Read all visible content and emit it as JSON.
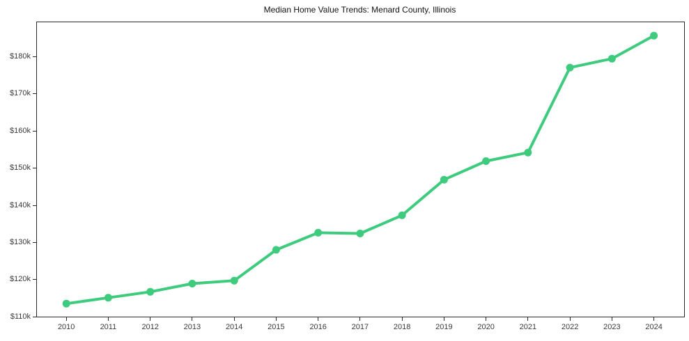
{
  "figure": {
    "title": "Median Home Value Trends: Menard County, Illinois"
  },
  "chart_data": {
    "type": "line",
    "title": "Median Home Value Trends: Menard County, Illinois",
    "x": [
      2010,
      2011,
      2012,
      2013,
      2014,
      2015,
      2016,
      2017,
      2018,
      2019,
      2020,
      2021,
      2022,
      2023,
      2024
    ],
    "values": [
      113500,
      115100,
      116700,
      118900,
      119700,
      128000,
      132600,
      132400,
      137300,
      146900,
      151900,
      154200,
      177100,
      179500,
      185700
    ],
    "xlabel": "",
    "ylabel": "",
    "ylim": [
      110000,
      189300
    ],
    "xlim": [
      2009.3,
      2024.72
    ],
    "yticks": [
      {
        "value": 110000,
        "label": "$110k"
      },
      {
        "value": 120000,
        "label": "$120k"
      },
      {
        "value": 130000,
        "label": "$130k"
      },
      {
        "value": 140000,
        "label": "$140k"
      },
      {
        "value": 150000,
        "label": "$150k"
      },
      {
        "value": 160000,
        "label": "$160k"
      },
      {
        "value": 170000,
        "label": "$170k"
      },
      {
        "value": 180000,
        "label": "$180k"
      }
    ],
    "xtick_labels": [
      "2010",
      "2011",
      "2012",
      "2013",
      "2014",
      "2015",
      "2016",
      "2017",
      "2018",
      "2019",
      "2020",
      "2021",
      "2022",
      "2023",
      "2024"
    ],
    "grid": false,
    "legend": "none",
    "marker": "circle"
  },
  "colors": {
    "line": "#3ecb7e",
    "axis": "#262626",
    "tick_label": "#3a3a3a",
    "title": "#111111",
    "background": "#ffffff"
  }
}
